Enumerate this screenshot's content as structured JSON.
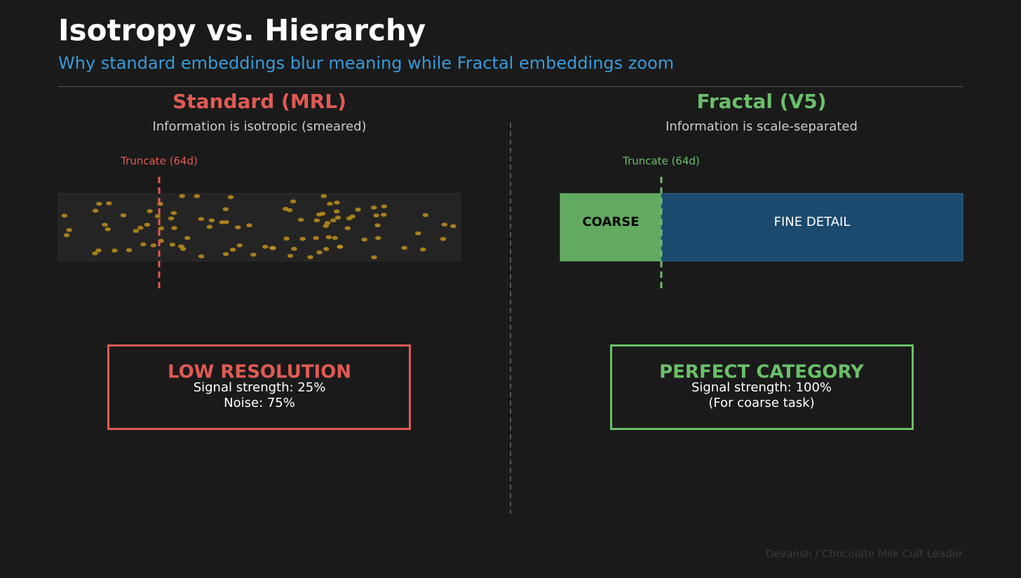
{
  "header": {
    "title": "Isotropy vs. Hierarchy",
    "subtitle": "Why standard embeddings blur meaning while Fractal embeddings zoom"
  },
  "panels": [
    {
      "title": "Standard (MRL)",
      "caption": "Information is isotropic (smeared)",
      "cut_label": "Truncate (64d)",
      "box": {
        "title": "LOW RESOLUTION",
        "lines": [
          "Signal strength: 25%",
          "Noise: 75%"
        ]
      }
    },
    {
      "title": "Fractal (V5)",
      "caption": "Information is scale-separated",
      "cut_label": "Truncate (64d)",
      "segments": [
        "COARSE",
        "FINE DETAIL"
      ],
      "box": {
        "title": "PERFECT CATEGORY",
        "lines": [
          "Signal strength: 100%",
          "(For coarse task)"
        ]
      }
    }
  ],
  "footer": {
    "credit": "Devansh / Chocolate Milk Cult Leader"
  }
}
